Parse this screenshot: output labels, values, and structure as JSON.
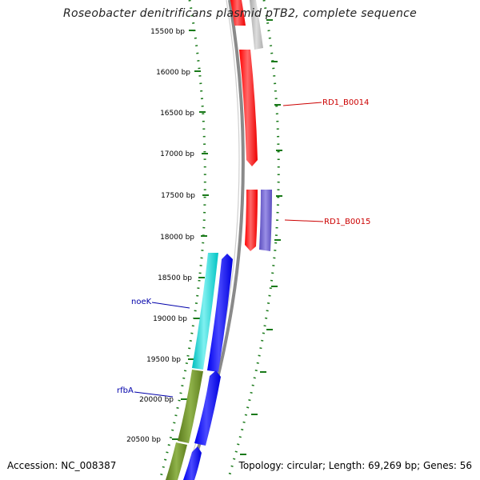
{
  "title": "Roseobacter denitrificans plasmid pTB2, complete sequence",
  "accession": "Accession: NC_008387",
  "summary": "Topology: circular; Length: 69,269 bp; Genes: 56",
  "tick_labels": [
    "15500 bp",
    "16000 bp",
    "16500 bp",
    "17000 bp",
    "17500 bp",
    "18000 bp",
    "18500 bp",
    "19000 bp",
    "19500 bp",
    "20000 bp",
    "20500 bp"
  ],
  "gene_labels": {
    "rd1_b0014": "RD1_B0014",
    "rd1_b0015": "RD1_B0015",
    "noek": "noeK",
    "rfba": "rfbA"
  },
  "colors": {
    "backbone": "#808080",
    "tick": "#1a7a1a",
    "red": "#ff0000",
    "grey": "#b8b8b8",
    "purple": "#6a5acd",
    "cyan": "#00cccc",
    "blue": "#0000ff",
    "olive": "#6b8e23",
    "red_label": "#cc0000",
    "blue_label": "#0000aa"
  }
}
